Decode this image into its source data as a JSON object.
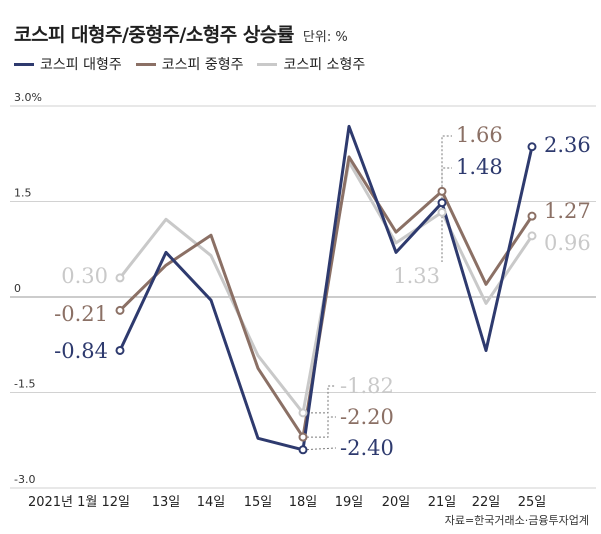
{
  "title": "코스피 대형주/중형주/소형주 상승률",
  "unit": "단위: %",
  "source": "자료=한국거래소·금융투자업계",
  "chart_data": {
    "type": "line",
    "title": "코스피 대형주/중형주/소형주 상승률",
    "unit": "단위: %",
    "categories": [
      "2021년 1월 12일",
      "13일",
      "14일",
      "15일",
      "18일",
      "19일",
      "20일",
      "21일",
      "22일",
      "25일"
    ],
    "ylim": [
      -3.0,
      3.0
    ],
    "yticks": [
      {
        "value": 3.0,
        "label": "3.0%"
      },
      {
        "value": 1.5,
        "label": "1.5"
      },
      {
        "value": 0,
        "label": "0"
      },
      {
        "value": -1.5,
        "label": "-1.5"
      },
      {
        "value": -3.0,
        "label": "-3.0"
      }
    ],
    "grid": true,
    "legend_position": "top-left",
    "series": [
      {
        "name": "코스피 대형주",
        "color": "#2e3a6e",
        "values": [
          -0.84,
          0.7,
          -0.05,
          -2.22,
          -2.4,
          2.68,
          0.7,
          1.48,
          -0.84,
          2.36
        ]
      },
      {
        "name": "코스피 중형주",
        "color": "#8b7065",
        "values": [
          -0.21,
          0.5,
          0.97,
          -1.12,
          -2.2,
          2.2,
          1.02,
          1.66,
          0.2,
          1.27
        ]
      },
      {
        "name": "코스피 소형주",
        "color": "#c9c9c9",
        "values": [
          0.3,
          1.22,
          0.65,
          -0.92,
          -1.82,
          2.12,
          0.85,
          1.33,
          -0.1,
          0.96
        ]
      }
    ],
    "data_labels": [
      {
        "text": "0.30",
        "series": 2,
        "index": 0
      },
      {
        "text": "-0.21",
        "series": 1,
        "index": 0
      },
      {
        "text": "-0.84",
        "series": 0,
        "index": 0
      },
      {
        "text": "-1.82",
        "series": 2,
        "index": 4
      },
      {
        "text": "-2.20",
        "series": 1,
        "index": 4
      },
      {
        "text": "-2.40",
        "series": 0,
        "index": 4
      },
      {
        "text": "1.66",
        "series": 1,
        "index": 7
      },
      {
        "text": "1.48",
        "series": 0,
        "index": 7
      },
      {
        "text": "1.33",
        "series": 2,
        "index": 7
      },
      {
        "text": "2.36",
        "series": 0,
        "index": 9
      },
      {
        "text": "1.27",
        "series": 1,
        "index": 9
      },
      {
        "text": "0.96",
        "series": 2,
        "index": 9
      }
    ]
  }
}
